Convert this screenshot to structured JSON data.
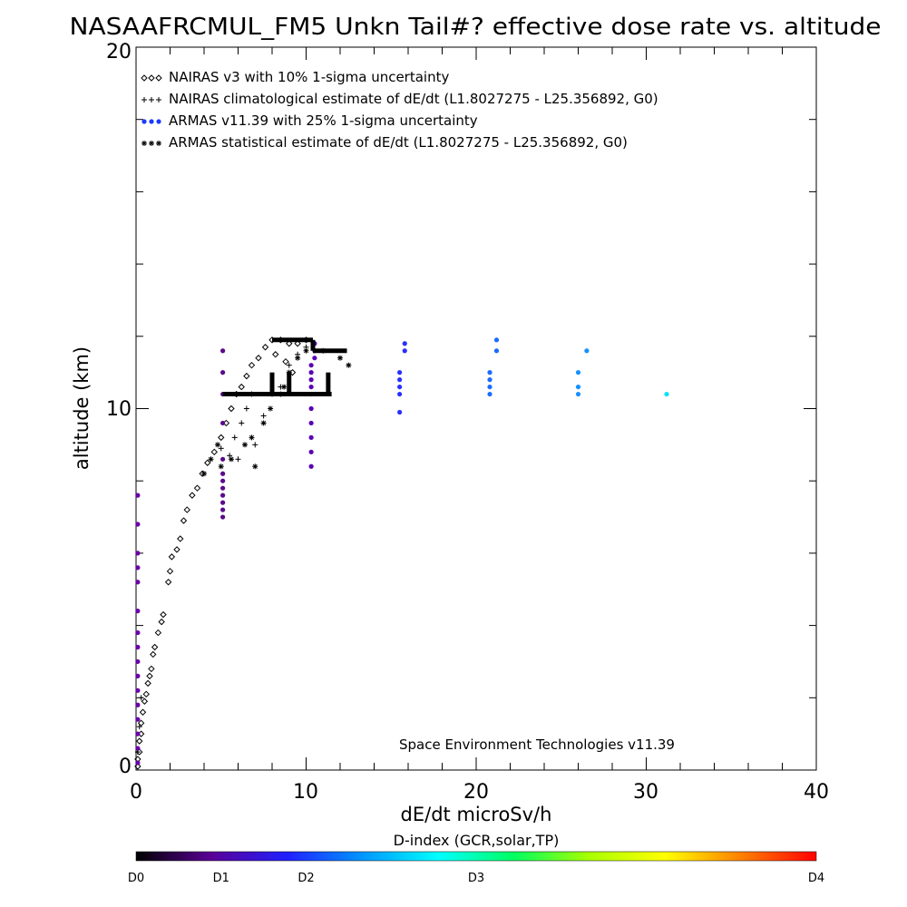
{
  "chart_data": {
    "type": "scatter",
    "title": "NASAAFRCMUL_FM5 Unkn Tail#? effective dose rate vs. altitude",
    "xlabel": "dE/dt microSv/h",
    "ylabel": "altitude (km)",
    "xlim": [
      0,
      40
    ],
    "ylim": [
      0,
      20
    ],
    "x_ticks": [
      "0",
      "10",
      "20",
      "30",
      "40"
    ],
    "y_ticks": [
      "0",
      "10",
      "20"
    ],
    "grid": false,
    "legend_position": "top-left",
    "annotation": "Space Environment Technologies v11.39",
    "colorbar": {
      "title": "D-index (GCR,solar,TP)",
      "labels": [
        {
          "text": "D0",
          "pos": 0
        },
        {
          "text": "D1",
          "pos": 0.125
        },
        {
          "text": "D2",
          "pos": 0.25
        },
        {
          "text": "D3",
          "pos": 0.5
        },
        {
          "text": "D4",
          "pos": 1.0
        }
      ],
      "colors": [
        "#000000",
        "#5a0096",
        "#2020ff",
        "#0096ff",
        "#00ffff",
        "#00ff60",
        "#aaff00",
        "#ffff00",
        "#ff8000",
        "#ff0000"
      ]
    },
    "series": [
      {
        "name": "NAIRAS v3 with 10% 1-sigma uncertainty",
        "marker": "diamond",
        "color": "#000000",
        "points": [
          [
            0.1,
            0.1
          ],
          [
            0.1,
            0.3
          ],
          [
            0.2,
            0.5
          ],
          [
            0.2,
            0.8
          ],
          [
            0.3,
            1.0
          ],
          [
            0.3,
            1.3
          ],
          [
            0.4,
            1.6
          ],
          [
            0.5,
            1.9
          ],
          [
            0.6,
            2.1
          ],
          [
            0.7,
            2.4
          ],
          [
            0.8,
            2.6
          ],
          [
            0.9,
            2.8
          ],
          [
            1.0,
            3.2
          ],
          [
            1.1,
            3.4
          ],
          [
            1.3,
            3.8
          ],
          [
            1.5,
            4.1
          ],
          [
            1.6,
            4.3
          ],
          [
            1.9,
            5.2
          ],
          [
            2.0,
            5.5
          ],
          [
            2.1,
            5.9
          ],
          [
            2.4,
            6.1
          ],
          [
            2.6,
            6.4
          ],
          [
            2.8,
            6.9
          ],
          [
            3.0,
            7.2
          ],
          [
            3.3,
            7.6
          ],
          [
            3.6,
            7.8
          ],
          [
            3.9,
            8.2
          ],
          [
            4.2,
            8.5
          ],
          [
            4.6,
            8.8
          ],
          [
            5.0,
            9.2
          ],
          [
            5.3,
            9.6
          ],
          [
            5.6,
            10.0
          ],
          [
            5.9,
            10.4
          ],
          [
            6.2,
            10.6
          ],
          [
            6.5,
            10.9
          ],
          [
            6.8,
            11.2
          ],
          [
            7.2,
            11.4
          ],
          [
            7.6,
            11.7
          ],
          [
            8.0,
            11.9
          ],
          [
            8.5,
            11.9
          ],
          [
            9.0,
            11.8
          ],
          [
            9.5,
            11.8
          ],
          [
            10.0,
            11.9
          ],
          [
            8.2,
            11.5
          ],
          [
            8.8,
            11.3
          ],
          [
            9.2,
            11.0
          ]
        ]
      },
      {
        "name": "NAIRAS climatological estimate of dE/dt (L1.8027275 - L25.356892, G0)",
        "marker": "plus",
        "color": "#000000",
        "points": [
          [
            0.1,
            0.5
          ],
          [
            0.2,
            1.2
          ],
          [
            0.3,
            2.0
          ],
          [
            5.0,
            8.9
          ],
          [
            5.5,
            8.7
          ],
          [
            6.0,
            8.6
          ],
          [
            5.8,
            9.2
          ],
          [
            6.2,
            9.6
          ],
          [
            6.5,
            10.0
          ],
          [
            6.8,
            10.4
          ],
          [
            7.0,
            9.0
          ],
          [
            7.5,
            9.8
          ],
          [
            8.0,
            10.4
          ],
          [
            8.5,
            10.6
          ],
          [
            9.0,
            11.2
          ],
          [
            9.5,
            11.5
          ],
          [
            10.0,
            11.7
          ]
        ]
      },
      {
        "name": "ARMAS v11.39 with 25% 1-sigma uncertainty",
        "marker": "dot",
        "color": "#1a3cff",
        "points": [
          [
            0.1,
            0.2
          ],
          [
            0.1,
            0.6
          ],
          [
            0.1,
            1.0
          ],
          [
            0.1,
            1.4
          ],
          [
            0.1,
            1.8
          ],
          [
            0.1,
            2.2
          ],
          [
            0.1,
            2.6
          ],
          [
            0.1,
            3.0
          ],
          [
            0.1,
            3.4
          ],
          [
            0.1,
            3.8
          ],
          [
            0.1,
            4.4
          ],
          [
            0.1,
            5.2
          ],
          [
            0.1,
            5.6
          ],
          [
            0.1,
            6.0
          ],
          [
            0.1,
            6.8
          ],
          [
            0.1,
            7.6
          ],
          [
            5.1,
            7.0
          ],
          [
            5.1,
            7.2
          ],
          [
            5.1,
            7.4
          ],
          [
            5.1,
            7.6
          ],
          [
            5.1,
            7.8
          ],
          [
            5.1,
            8.0
          ],
          [
            5.1,
            8.2
          ],
          [
            5.1,
            8.6
          ],
          [
            5.1,
            9.6
          ],
          [
            5.1,
            10.4
          ],
          [
            5.1,
            11.0
          ],
          [
            5.1,
            11.6
          ],
          [
            10.3,
            8.4
          ],
          [
            10.3,
            8.8
          ],
          [
            10.3,
            9.2
          ],
          [
            10.3,
            9.6
          ],
          [
            10.3,
            10.0
          ],
          [
            10.3,
            10.4
          ],
          [
            10.3,
            10.6
          ],
          [
            10.3,
            10.8
          ],
          [
            10.3,
            11.0
          ],
          [
            10.3,
            11.2
          ],
          [
            10.5,
            11.4
          ],
          [
            10.5,
            11.6
          ],
          [
            10.5,
            11.8
          ],
          [
            15.5,
            9.9
          ],
          [
            15.5,
            10.4
          ],
          [
            15.5,
            10.6
          ],
          [
            15.5,
            10.8
          ],
          [
            15.5,
            11.0
          ],
          [
            15.8,
            11.6
          ],
          [
            15.8,
            11.8
          ],
          [
            20.8,
            10.4
          ],
          [
            20.8,
            10.6
          ],
          [
            20.8,
            10.8
          ],
          [
            20.8,
            11.0
          ],
          [
            21.2,
            11.6
          ],
          [
            21.2,
            11.9
          ],
          [
            26.0,
            10.4
          ],
          [
            26.0,
            10.6
          ],
          [
            26.0,
            11.0
          ],
          [
            26.5,
            11.6
          ],
          [
            31.2,
            10.4
          ]
        ]
      },
      {
        "name": "ARMAS statistical estimate of dE/dt (L1.8027275 - L25.356892, G0)",
        "marker": "asterisk",
        "color": "#000000",
        "points": [
          [
            4.0,
            8.2
          ],
          [
            4.4,
            8.6
          ],
          [
            4.8,
            9.0
          ],
          [
            5.0,
            8.4
          ],
          [
            5.6,
            8.6
          ],
          [
            6.4,
            9.0
          ],
          [
            6.8,
            9.2
          ],
          [
            7.0,
            8.4
          ],
          [
            7.5,
            9.6
          ],
          [
            7.9,
            10.0
          ],
          [
            8.5,
            10.4
          ],
          [
            8.7,
            10.6
          ],
          [
            9.0,
            11.0
          ],
          [
            9.5,
            11.4
          ],
          [
            10.0,
            11.6
          ],
          [
            11.0,
            11.6
          ],
          [
            12.0,
            11.4
          ],
          [
            12.5,
            11.2
          ]
        ]
      }
    ]
  }
}
